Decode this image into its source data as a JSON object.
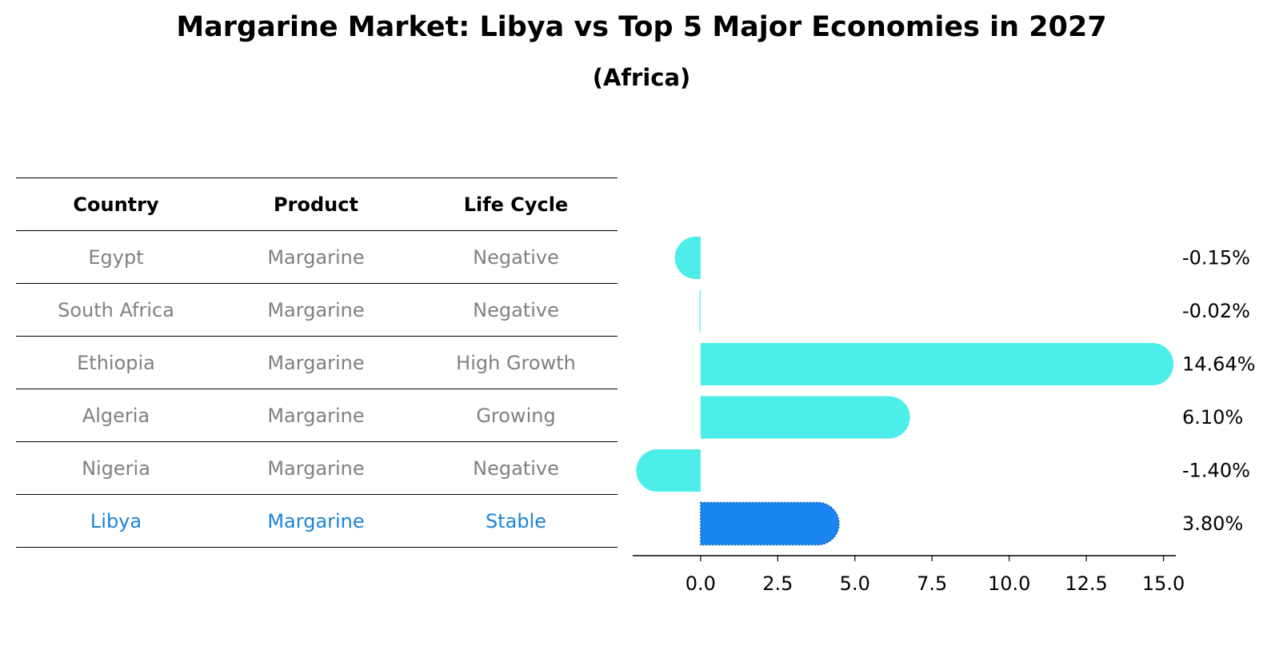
{
  "title": "Margarine Market: Libya vs Top 5 Major Economies in 2027",
  "subtitle": "(Africa)",
  "table": {
    "headers": [
      "Country",
      "Product",
      "Life Cycle"
    ],
    "rows": [
      [
        "Egypt",
        "Margarine",
        "Negative"
      ],
      [
        "South Africa",
        "Margarine",
        "Negative"
      ],
      [
        "Ethiopia",
        "Margarine",
        "High Growth"
      ],
      [
        "Algeria",
        "Margarine",
        "Growing"
      ],
      [
        "Nigeria",
        "Margarine",
        "Negative"
      ],
      [
        "Libya",
        "Margarine",
        "Stable"
      ]
    ],
    "highlight_row": 5
  },
  "chart_data": {
    "type": "bar",
    "orientation": "horizontal",
    "categories": [
      "Egypt",
      "South Africa",
      "Ethiopia",
      "Algeria",
      "Nigeria",
      "Libya"
    ],
    "values": [
      -0.15,
      -0.02,
      14.64,
      6.1,
      -1.4,
      3.8
    ],
    "value_labels": [
      "-0.15%",
      "-0.02%",
      "14.64%",
      "6.10%",
      "-1.40%",
      "3.80%"
    ],
    "xlim": [
      -2.2,
      15.4
    ],
    "xticks": [
      0.0,
      2.5,
      5.0,
      7.5,
      10.0,
      12.5,
      15.0
    ],
    "xtick_labels": [
      "0.0",
      "2.5",
      "5.0",
      "7.5",
      "10.0",
      "12.5",
      "15.0"
    ],
    "highlight_index": 5,
    "colors": {
      "default": "#4deeea",
      "highlight": "#1a84f0"
    },
    "grid": false,
    "legend": "none"
  }
}
